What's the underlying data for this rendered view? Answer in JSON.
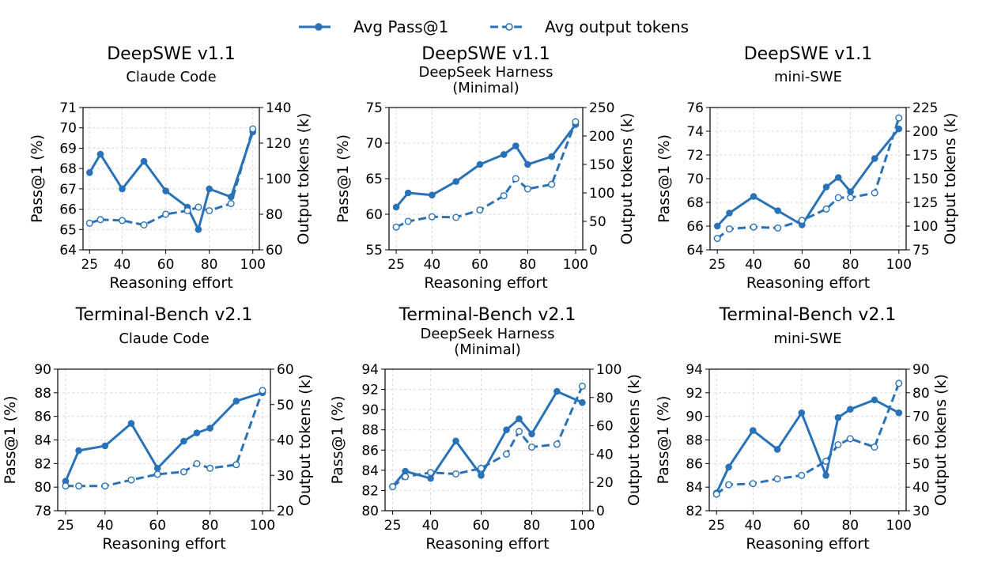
{
  "legend": {
    "pass_label": "Avg Pass@1",
    "tokens_label": "Avg output tokens"
  },
  "colors": {
    "series": "#2a72b8",
    "grid": "#d9d9d9"
  },
  "chart_data": [
    {
      "type": "line",
      "title": "DeepSWE v1.1",
      "subtitle": "Claude Code",
      "xlabel": "Reasoning effort",
      "ylabel": "Pass@1 (%)",
      "y2label": "Output tokens (k)",
      "xticks": [
        25,
        40,
        60,
        80,
        100
      ],
      "xlim": [
        22,
        103
      ],
      "ylim": [
        64,
        71
      ],
      "yticks": [
        64,
        65,
        66,
        67,
        68,
        69,
        70,
        71
      ],
      "y2lim": [
        60,
        140
      ],
      "y2ticks": [
        60,
        80,
        100,
        120,
        140
      ],
      "grid": true,
      "x": [
        25,
        30,
        40,
        50,
        60,
        70,
        75,
        80,
        90,
        100
      ],
      "series": [
        {
          "name": "Avg Pass@1",
          "axis": "left",
          "style": "solid",
          "values": [
            67.8,
            68.7,
            67.0,
            68.35,
            66.9,
            66.1,
            65.0,
            67.0,
            66.6,
            69.8
          ]
        },
        {
          "name": "Avg output tokens",
          "axis": "right",
          "style": "dashed",
          "values": [
            75,
            77,
            76.5,
            74,
            80,
            82,
            84,
            82,
            86,
            128
          ]
        }
      ]
    },
    {
      "type": "line",
      "title": "DeepSWE v1.1",
      "subtitle": "DeepSeek Harness\n(Minimal)",
      "xlabel": "Reasoning effort",
      "ylabel": "Pass@1 (%)",
      "y2label": "Output tokens (k)",
      "xticks": [
        25,
        40,
        60,
        80,
        100
      ],
      "xlim": [
        22,
        103
      ],
      "ylim": [
        55,
        75
      ],
      "yticks": [
        55,
        60,
        65,
        70,
        75
      ],
      "y2lim": [
        0,
        250
      ],
      "y2ticks": [
        0,
        50,
        100,
        150,
        200,
        250
      ],
      "grid": true,
      "x": [
        25,
        30,
        40,
        50,
        60,
        70,
        75,
        80,
        90,
        100
      ],
      "series": [
        {
          "name": "Avg Pass@1",
          "axis": "left",
          "style": "solid",
          "values": [
            61.0,
            63.0,
            62.7,
            64.6,
            67.0,
            68.4,
            69.6,
            67.0,
            68.1,
            72.6
          ]
        },
        {
          "name": "Avg output tokens",
          "axis": "right",
          "style": "dashed",
          "values": [
            40,
            50,
            58,
            57,
            70,
            95,
            125,
            107,
            115,
            225
          ]
        }
      ]
    },
    {
      "type": "line",
      "title": "DeepSWE v1.1",
      "subtitle": "mini-SWE",
      "xlabel": "Reasoning effort",
      "ylabel": "Pass@1 (%)",
      "y2label": "Output tokens (k)",
      "xticks": [
        25,
        40,
        60,
        80,
        100
      ],
      "xlim": [
        22,
        103
      ],
      "ylim": [
        64,
        76
      ],
      "yticks": [
        64,
        66,
        68,
        70,
        72,
        74,
        76
      ],
      "y2lim": [
        75,
        225
      ],
      "y2ticks": [
        75,
        100,
        125,
        150,
        175,
        200,
        225
      ],
      "grid": true,
      "x": [
        25,
        30,
        40,
        50,
        60,
        70,
        75,
        80,
        90,
        100
      ],
      "series": [
        {
          "name": "Avg Pass@1",
          "axis": "left",
          "style": "solid",
          "values": [
            66.0,
            67.1,
            68.5,
            67.3,
            66.1,
            69.3,
            70.1,
            68.9,
            71.7,
            74.2
          ]
        },
        {
          "name": "Avg output tokens",
          "axis": "right",
          "style": "dashed",
          "values": [
            87,
            97,
            99,
            98,
            106,
            118,
            130,
            130,
            135,
            214
          ]
        }
      ]
    },
    {
      "type": "line",
      "title": "Terminal-Bench v2.1",
      "subtitle": "Claude Code",
      "xlabel": "Reasoning effort",
      "ylabel": "Pass@1 (%)",
      "y2label": "Output tokens (k)",
      "xticks": [
        25,
        40,
        60,
        80,
        100
      ],
      "xlim": [
        22,
        103
      ],
      "ylim": [
        78,
        90
      ],
      "yticks": [
        78,
        80,
        82,
        84,
        86,
        88,
        90
      ],
      "y2lim": [
        20,
        60
      ],
      "y2ticks": [
        20,
        30,
        40,
        50,
        60
      ],
      "grid": true,
      "x": [
        25,
        30,
        40,
        50,
        60,
        70,
        75,
        80,
        90,
        100
      ],
      "series": [
        {
          "name": "Avg Pass@1",
          "axis": "left",
          "style": "solid",
          "values": [
            80.5,
            83.1,
            83.5,
            85.4,
            81.6,
            83.9,
            84.6,
            85.0,
            87.3,
            88.0
          ]
        },
        {
          "name": "Avg output tokens",
          "axis": "right",
          "style": "dashed",
          "values": [
            27,
            27,
            27,
            28.7,
            30.3,
            31,
            33.3,
            32,
            33,
            54
          ]
        }
      ]
    },
    {
      "type": "line",
      "title": "Terminal-Bench v2.1",
      "subtitle": "DeepSeek Harness\n(Minimal)",
      "xlabel": "Reasoning effort",
      "ylabel": "Pass@1 (%)",
      "y2label": "Output tokens (k)",
      "xticks": [
        25,
        40,
        60,
        80,
        100
      ],
      "xlim": [
        22,
        103
      ],
      "ylim": [
        80,
        94
      ],
      "yticks": [
        80,
        82,
        84,
        86,
        88,
        90,
        92,
        94
      ],
      "y2lim": [
        0,
        100
      ],
      "y2ticks": [
        0,
        20,
        40,
        60,
        80,
        100
      ],
      "grid": true,
      "x": [
        25,
        30,
        40,
        50,
        60,
        70,
        75,
        80,
        90,
        100
      ],
      "series": [
        {
          "name": "Avg Pass@1",
          "axis": "left",
          "style": "solid",
          "values": [
            82.4,
            83.9,
            83.2,
            86.9,
            83.5,
            88.0,
            89.1,
            87.6,
            91.8,
            90.7
          ]
        },
        {
          "name": "Avg output tokens",
          "axis": "right",
          "style": "dashed",
          "values": [
            17,
            24,
            27,
            26,
            30,
            40,
            56,
            45,
            47,
            88
          ]
        }
      ]
    },
    {
      "type": "line",
      "title": "Terminal-Bench v2.1",
      "subtitle": "mini-SWE",
      "xlabel": "Reasoning effort",
      "ylabel": "Pass@1 (%)",
      "y2label": "Output tokens (k)",
      "xticks": [
        25,
        40,
        60,
        80,
        100
      ],
      "xlim": [
        22,
        103
      ],
      "ylim": [
        82,
        94
      ],
      "yticks": [
        82,
        84,
        86,
        88,
        90,
        92,
        94
      ],
      "y2lim": [
        30,
        90
      ],
      "y2ticks": [
        30,
        40,
        50,
        60,
        70,
        80,
        90
      ],
      "grid": true,
      "x": [
        25,
        30,
        40,
        50,
        60,
        70,
        75,
        80,
        90,
        100
      ],
      "series": [
        {
          "name": "Avg Pass@1",
          "axis": "left",
          "style": "solid",
          "values": [
            83.5,
            85.7,
            88.8,
            87.2,
            90.3,
            85.0,
            89.9,
            90.6,
            91.4,
            90.3
          ]
        },
        {
          "name": "Avg output tokens",
          "axis": "right",
          "style": "dashed",
          "values": [
            37,
            41,
            41.5,
            43.5,
            45,
            51,
            58,
            60.5,
            57,
            84
          ]
        }
      ]
    }
  ]
}
